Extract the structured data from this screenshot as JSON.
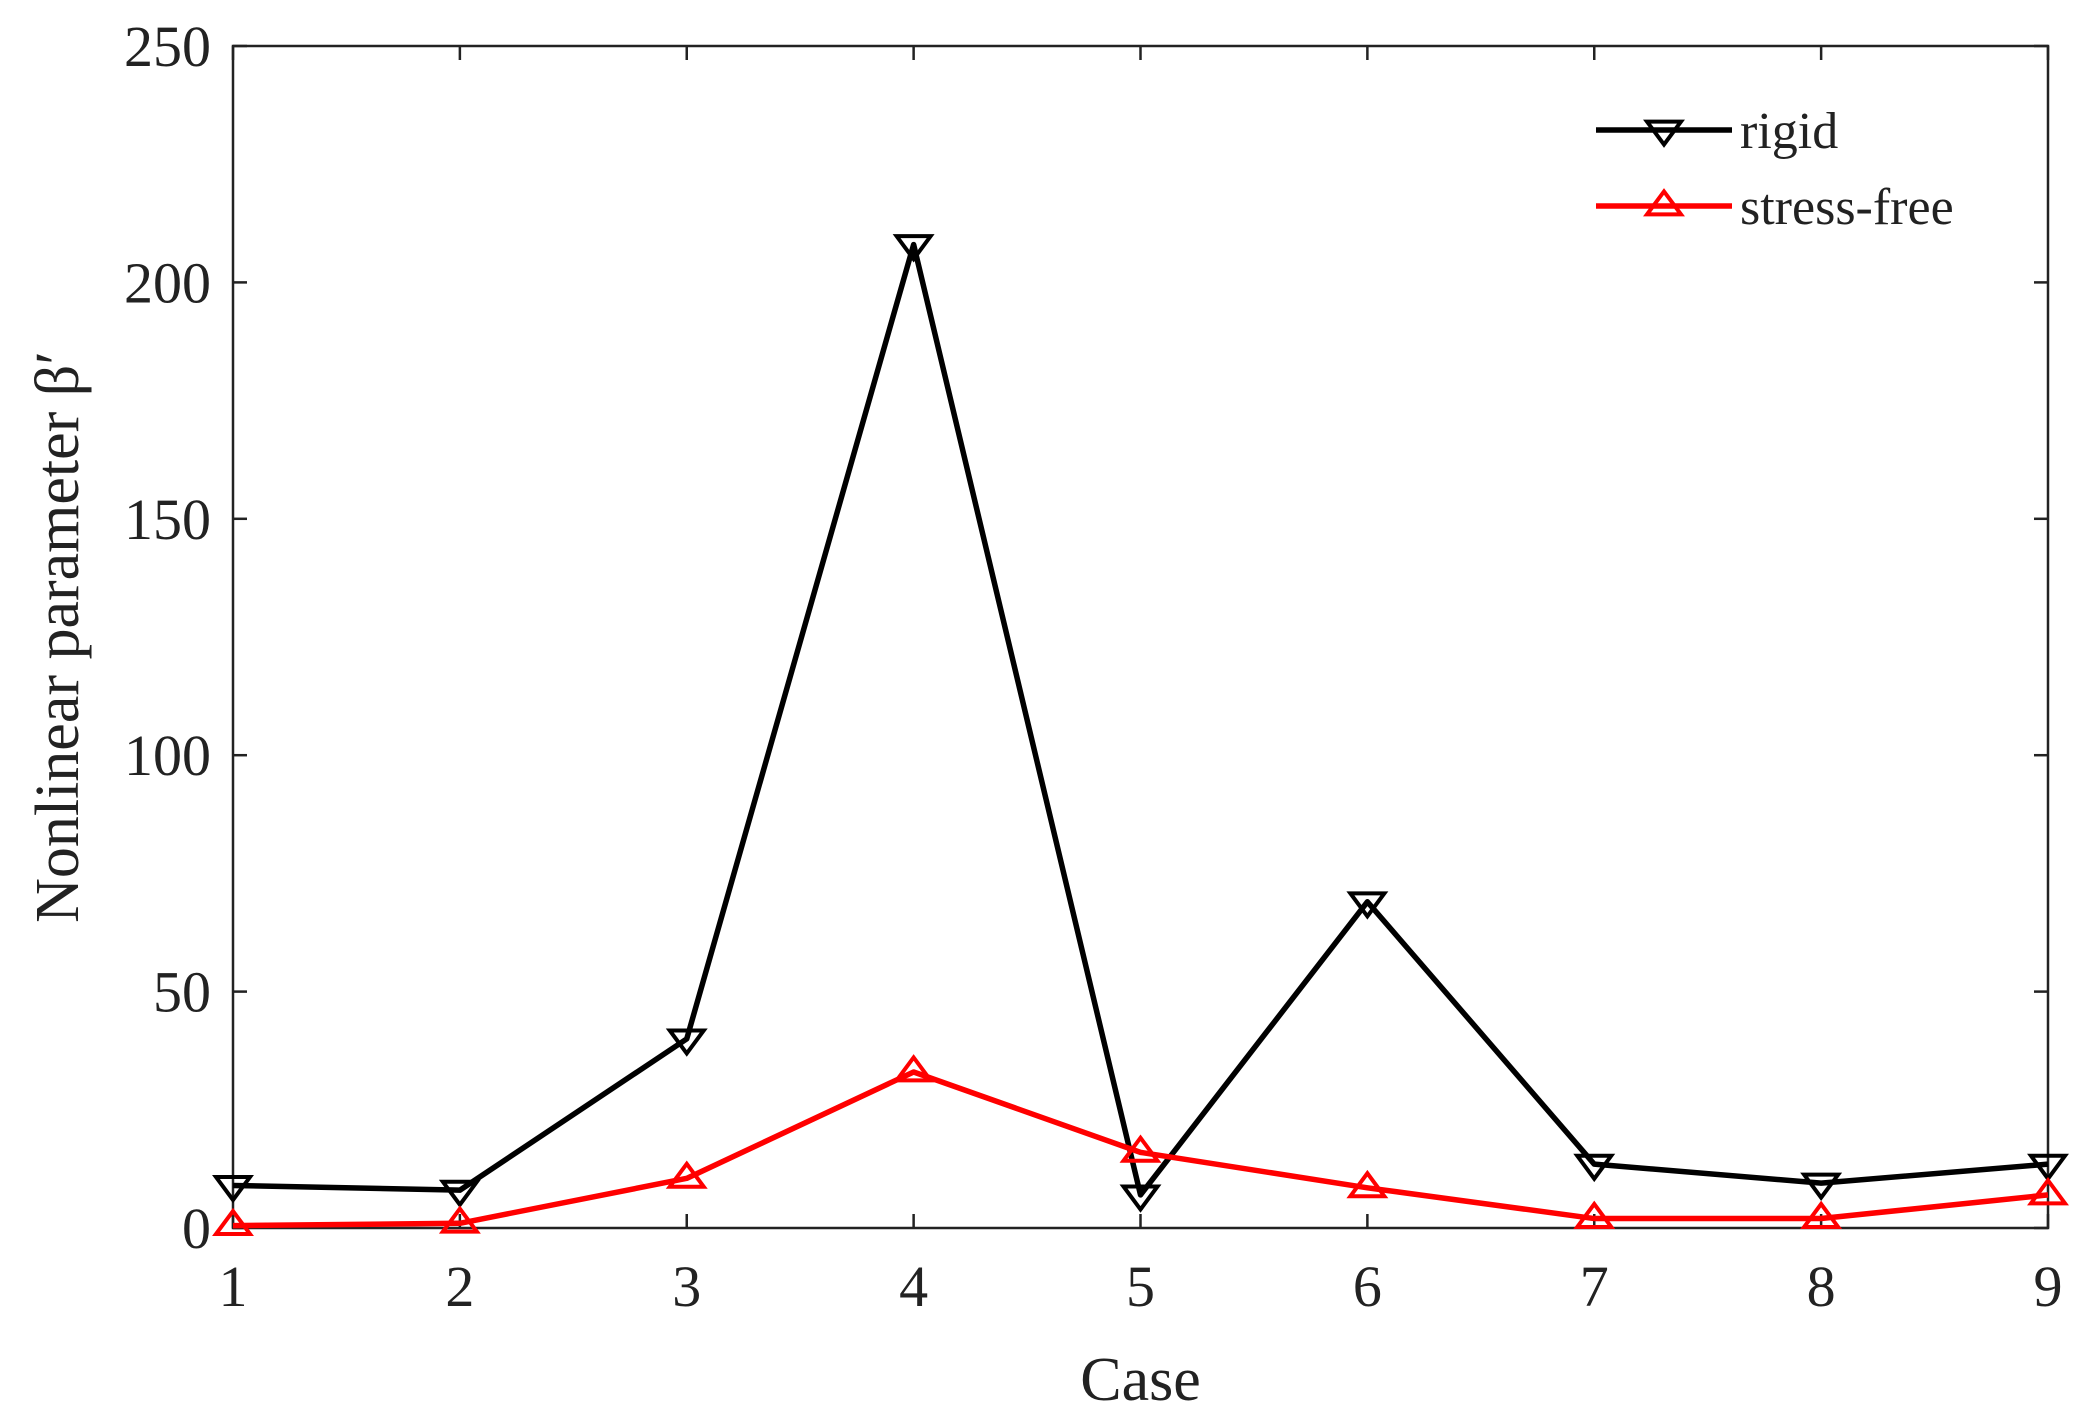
{
  "chart_data": {
    "type": "line",
    "title": "",
    "xlabel": "Case",
    "ylabel": "Nonlinear parameter β′",
    "x": [
      1,
      2,
      3,
      4,
      5,
      6,
      7,
      8,
      9
    ],
    "xlim": [
      1,
      9
    ],
    "ylim": [
      0,
      250
    ],
    "xticks": [
      1,
      2,
      3,
      4,
      5,
      6,
      7,
      8,
      9
    ],
    "yticks": [
      0,
      50,
      100,
      150,
      200,
      250
    ],
    "grid": false,
    "legend_position": "top-right",
    "series": [
      {
        "name": "rigid",
        "color": "#000000",
        "marker": "triangle-down",
        "values": [
          9,
          8,
          40,
          208,
          7,
          69,
          13.5,
          9.5,
          13.5
        ]
      },
      {
        "name": "stress-free",
        "color": "#ff0000",
        "marker": "triangle-up",
        "values": [
          0.5,
          1,
          10.5,
          33,
          16,
          8.5,
          2,
          2,
          7
        ]
      }
    ]
  }
}
